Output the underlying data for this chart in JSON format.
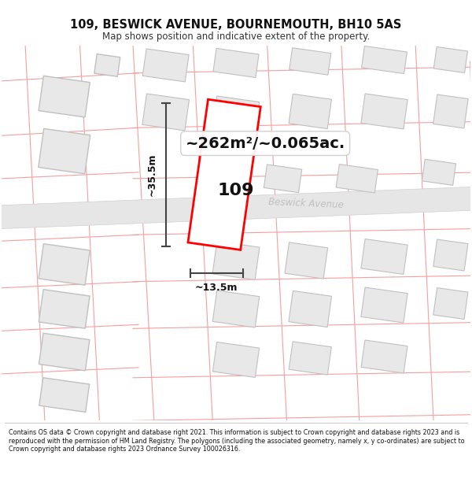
{
  "title_line1": "109, BESWICK AVENUE, BOURNEMOUTH, BH10 5AS",
  "title_line2": "Map shows position and indicative extent of the property.",
  "footer_text": "Contains OS data © Crown copyright and database right 2021. This information is subject to Crown copyright and database rights 2023 and is reproduced with the permission of HM Land Registry. The polygons (including the associated geometry, namely x, y co-ordinates) are subject to Crown copyright and database rights 2023 Ordnance Survey 100026316.",
  "area_label": "~262m²/~0.065ac.",
  "street_label": "Beswick Avenue",
  "number_label": "109",
  "width_label": "~13.5m",
  "height_label": "~35.5m",
  "bg_color": "#ffffff",
  "map_bg": "#ffffff",
  "plot_edge_color": "#ff0000",
  "plot_fill": "#ffffff",
  "dim_line_color": "#444444",
  "building_fill": "#e8e8e8",
  "building_border": "#c0c0c0",
  "parcel_edge": "#f4a0a0",
  "road_fill": "#e8e8e8",
  "road_border": "#c8c8c8",
  "street_label_color": "#b0b0b0"
}
